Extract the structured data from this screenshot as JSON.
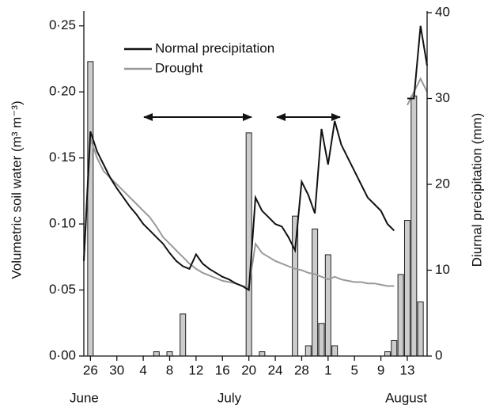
{
  "chart_data": {
    "type": "line",
    "x": [
      "06-25",
      "06-26",
      "06-27",
      "06-28",
      "06-29",
      "06-30",
      "07-01",
      "07-02",
      "07-03",
      "07-04",
      "07-05",
      "07-06",
      "07-07",
      "07-08",
      "07-09",
      "07-10",
      "07-11",
      "07-12",
      "07-13",
      "07-14",
      "07-15",
      "07-16",
      "07-17",
      "07-18",
      "07-19",
      "07-20",
      "07-21",
      "07-22",
      "07-23",
      "07-24",
      "07-25",
      "07-26",
      "07-27",
      "07-28",
      "07-29",
      "07-30",
      "07-31",
      "08-01",
      "08-02",
      "08-03",
      "08-04",
      "08-05",
      "08-06",
      "08-07",
      "08-08",
      "08-09",
      "08-10",
      "08-11",
      "08-12",
      "08-13",
      "08-14",
      "08-15",
      "08-16"
    ],
    "xlim": [
      "06-25",
      "08-16"
    ],
    "xticks": [
      {
        "value": "06-26",
        "label": "26"
      },
      {
        "value": "06-30",
        "label": "30"
      },
      {
        "value": "07-04",
        "label": "4"
      },
      {
        "value": "07-08",
        "label": "8"
      },
      {
        "value": "07-12",
        "label": "12"
      },
      {
        "value": "07-16",
        "label": "16"
      },
      {
        "value": "07-20",
        "label": "20"
      },
      {
        "value": "07-24",
        "label": "24"
      },
      {
        "value": "07-28",
        "label": "28"
      },
      {
        "value": "08-01",
        "label": "1"
      },
      {
        "value": "08-05",
        "label": "5"
      },
      {
        "value": "08-09",
        "label": "9"
      },
      {
        "value": "08-13",
        "label": "13"
      }
    ],
    "months": [
      "June",
      "July",
      "August"
    ],
    "ylabel": "Volumetric soil water (m³ m⁻³)",
    "y2label": "Diurnal precipitation (mm)",
    "ylim": [
      0,
      0.26
    ],
    "yticks": [
      {
        "value": 0,
        "label": "0·00"
      },
      {
        "value": 0.05,
        "label": "0·05"
      },
      {
        "value": 0.1,
        "label": "0·10"
      },
      {
        "value": 0.15,
        "label": "0·15"
      },
      {
        "value": 0.2,
        "label": "0·20"
      },
      {
        "value": 0.25,
        "label": "0·25"
      }
    ],
    "y2lim": [
      0,
      40
    ],
    "y2ticks": [
      0,
      10,
      20,
      30,
      40
    ],
    "series": [
      {
        "name": "Normal precipitation",
        "color": "#111111",
        "values": [
          0.072,
          0.17,
          0.155,
          0.145,
          0.135,
          0.127,
          0.12,
          0.113,
          0.107,
          0.1,
          0.095,
          0.09,
          0.085,
          0.078,
          0.072,
          0.068,
          0.066,
          0.077,
          0.07,
          0.066,
          0.063,
          0.06,
          0.058,
          0.055,
          0.053,
          0.05,
          0.12,
          0.11,
          0.105,
          0.1,
          0.098,
          0.09,
          0.08,
          0.132,
          0.122,
          0.108,
          0.172,
          0.145,
          0.178,
          0.16,
          0.15,
          0.14,
          0.13,
          0.12,
          0.115,
          0.11,
          0.1,
          0.095,
          null,
          0.195,
          0.195,
          0.25,
          0.22
        ]
      },
      {
        "name": "Drought",
        "color": "#999999",
        "values": [
          0.072,
          0.165,
          0.15,
          0.14,
          0.135,
          0.13,
          0.125,
          0.12,
          0.115,
          0.11,
          0.105,
          0.098,
          0.09,
          0.085,
          0.08,
          0.075,
          0.07,
          0.066,
          0.063,
          0.061,
          0.059,
          0.057,
          0.056,
          0.055,
          0.053,
          0.052,
          0.085,
          0.078,
          0.075,
          0.072,
          0.07,
          0.068,
          0.066,
          0.065,
          0.063,
          0.062,
          0.06,
          0.058,
          0.06,
          0.058,
          0.057,
          0.056,
          0.056,
          0.055,
          0.055,
          0.054,
          0.053,
          0.053,
          null,
          0.19,
          0.2,
          0.21,
          0.2
        ]
      }
    ],
    "bars": {
      "color": "#cccccc",
      "axis": "y2",
      "x": [
        "06-26",
        "07-06",
        "07-08",
        "07-10",
        "07-20",
        "07-22",
        "07-27",
        "07-29",
        "07-30",
        "07-31",
        "08-01",
        "08-02",
        "08-10",
        "08-11",
        "08-12",
        "08-13",
        "08-14",
        "08-15"
      ],
      "values": [
        34.3,
        0.5,
        0.5,
        4.9,
        26,
        0.5,
        16.3,
        1.2,
        14.8,
        3.8,
        11.8,
        1.2,
        0.5,
        1.8,
        9.5,
        15.8,
        30.3,
        6.3
      ]
    }
  }
}
